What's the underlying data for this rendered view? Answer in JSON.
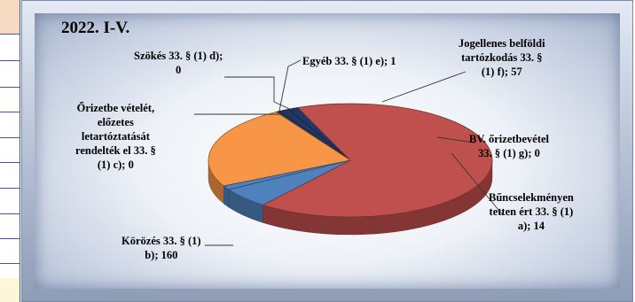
{
  "chart_data": {
    "type": "pie",
    "title": "2022. I-V.",
    "colors": {
      "korozes": "#c0504d",
      "jogellenes": "#f79646",
      "bv": "#4f81bd",
      "buncselekmeny": "#4f81bd",
      "other": "#1f3864"
    },
    "slices": [
      {
        "key": "korozes",
        "text": "Körözés 33. § (1) b); 160",
        "lines": [
          "Körözés 33. § (1)",
          "b); 160"
        ],
        "value": 160
      },
      {
        "key": "orizet",
        "text": "Őrizetbe vételét, előzetes letartóztatását rendelték el 33. § (1) c); 0",
        "lines": [
          "Őrizetbe vételét,",
          "előzetes",
          "letartóztatását",
          "rendelték el 33. §",
          "(1) c); 0"
        ],
        "value": 0
      },
      {
        "key": "szokes",
        "text": "Szökés 33. § (1) d); 0",
        "lines": [
          "Szökés 33. § (1) d);",
          "0"
        ],
        "value": 0
      },
      {
        "key": "egyeb",
        "text": "Egyéb 33. § (1) e); 1",
        "lines": [
          "Egyéb 33. § (1) e); 1"
        ],
        "value": 1
      },
      {
        "key": "jogellenes",
        "text": "Jogellenes belföldi tartózkodás 33. § (1) f); 57",
        "lines": [
          "Jogellenes belföldi",
          "tartózkodás 33. §",
          "(1) f); 57"
        ],
        "value": 57
      },
      {
        "key": "bv",
        "text": "BV. őrizetbevétel 33. § (1) g); 0",
        "lines": [
          "BV. őrizetbevétel",
          "33. § (1) g); 0"
        ],
        "value": 0
      },
      {
        "key": "buncselekmeny",
        "text": "Bűncselekményen tetten ért 33. § (1) a); 14",
        "lines": [
          "Bűncselekményen",
          "tetten ért 33. § (1)",
          "a); 14"
        ],
        "value": 14
      }
    ]
  }
}
